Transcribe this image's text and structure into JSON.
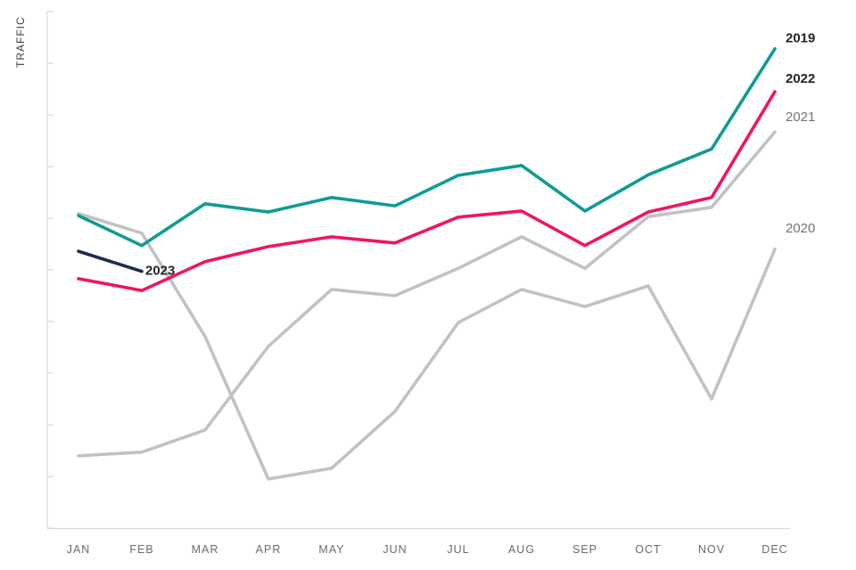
{
  "chart_data": {
    "type": "line",
    "title": "",
    "ylabel": "TRAFFIC",
    "xlabel": "",
    "x_categories": [
      "JAN",
      "FEB",
      "MAR",
      "APR",
      "MAY",
      "JUN",
      "JUL",
      "AUG",
      "SEP",
      "OCT",
      "NOV",
      "DEC"
    ],
    "y_axis": {
      "tick_count": 11,
      "tick_labels_visible": false,
      "scale_note": "unlabeled axis; values are relative 0-100 estimates"
    },
    "grid": "off",
    "legend_position": "end-of-line-labels",
    "series": [
      {
        "name": "2020",
        "color": "#c2c2c2",
        "label_style": "gray",
        "label_position": "right-margin",
        "label_dy": -23,
        "values": [
          60.9,
          57.1,
          37.1,
          9.5,
          11.6,
          22.6,
          39.8,
          46.2,
          42.9,
          46.9,
          25.0,
          54.0
        ]
      },
      {
        "name": "2021",
        "color": "#c2c2c2",
        "label_style": "gray",
        "label_position": "right-margin",
        "label_dy": -16,
        "values": [
          14.0,
          14.7,
          19.0,
          35.2,
          46.2,
          45.0,
          50.3,
          56.4,
          50.3,
          60.3,
          62.1,
          76.7
        ]
      },
      {
        "name": "2019",
        "color": "#0e9b98",
        "label_style": "bold-dark",
        "label_position": "right-margin",
        "label_dy": -11,
        "values": [
          60.5,
          54.7,
          62.8,
          61.2,
          64.0,
          62.4,
          68.3,
          70.2,
          61.4,
          68.4,
          73.4,
          92.8
        ]
      },
      {
        "name": "2022",
        "color": "#f01466",
        "label_style": "bold-dark",
        "label_position": "right-margin",
        "label_dy": -14,
        "values": [
          48.3,
          46.0,
          51.6,
          54.5,
          56.4,
          55.2,
          60.2,
          61.4,
          54.7,
          61.2,
          64.0,
          84.5
        ]
      },
      {
        "name": "2023",
        "color": "#1d2c55",
        "label_style": "bold-dark",
        "label_position": "line-end",
        "label_dy": 0,
        "values": [
          53.6,
          49.7
        ]
      }
    ],
    "colors": {
      "label_dark": "#252423",
      "label_gray": "#737373",
      "axis_line": "#d9d9d9",
      "axis_text": "#6b6b6b"
    }
  }
}
